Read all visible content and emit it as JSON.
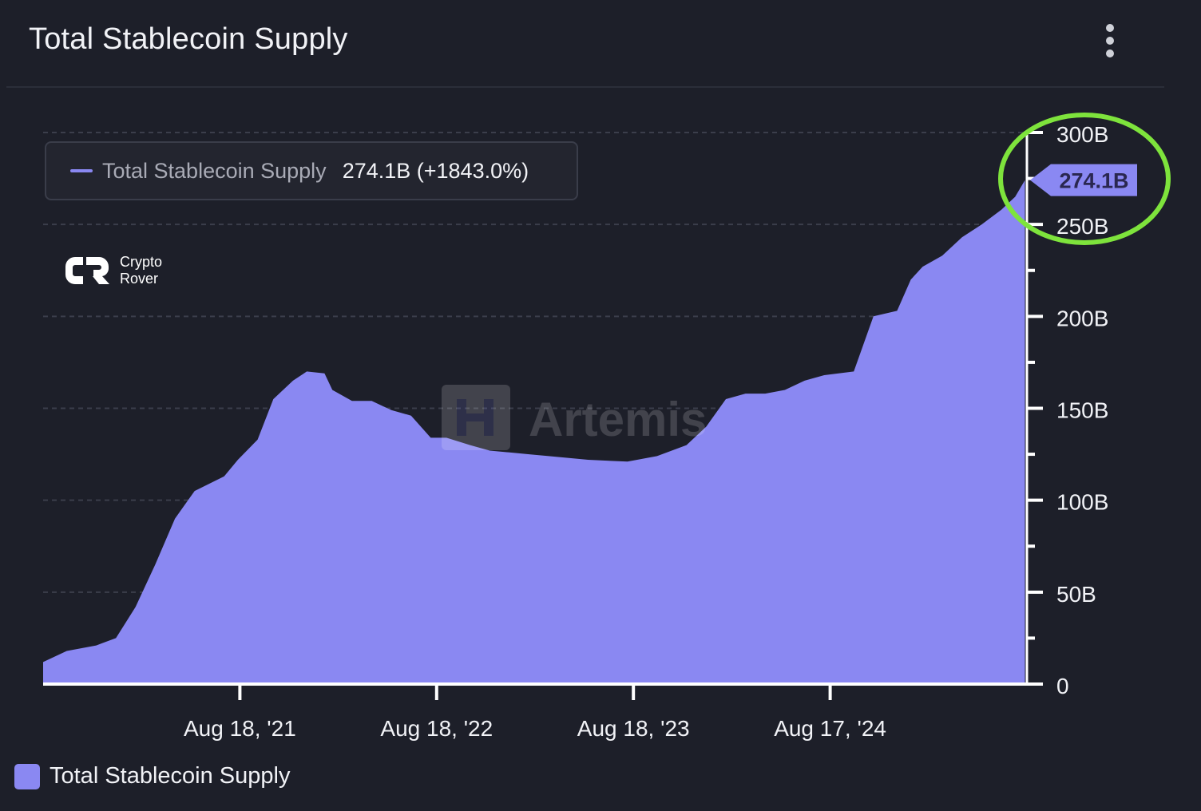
{
  "header": {
    "title": "Total Stablecoin Supply",
    "menu_icon": "more-vertical-icon"
  },
  "tooltip": {
    "series_name": "Total Stablecoin Supply",
    "value_text": "274.1B (+1843.0%)"
  },
  "watermarks": {
    "crypto_rover_line1": "Crypto",
    "crypto_rover_line2": "Rover",
    "artemis": "Artemis"
  },
  "legend": {
    "label": "Total Stablecoin Supply"
  },
  "colors": {
    "background": "#1d1f29",
    "series": "#8a88f2",
    "highlight_circle": "#7ee33c"
  },
  "chart_data": {
    "type": "area",
    "title": "Total Stablecoin Supply",
    "series_name": "Total Stablecoin Supply",
    "unit": "B",
    "x_tick_labels": [
      "Aug 18, '21",
      "Aug 18, '22",
      "Aug 18, '23",
      "Aug 17, '24"
    ],
    "x_tick_positions": [
      2021.63,
      2022.63,
      2023.63,
      2024.63
    ],
    "y_tick_labels": [
      "0",
      "50B",
      "100B",
      "150B",
      "200B",
      "250B",
      "300B"
    ],
    "y_tick_values": [
      0,
      50,
      100,
      150,
      200,
      250,
      300
    ],
    "ylim": [
      0,
      300
    ],
    "xlim": [
      2020.63,
      2025.63
    ],
    "grid": "horizontal dashed",
    "last_value_label": "274.1B",
    "x": [
      2020.63,
      2020.75,
      2020.9,
      2021.0,
      2021.1,
      2021.2,
      2021.3,
      2021.4,
      2021.55,
      2021.62,
      2021.72,
      2021.8,
      2021.9,
      2021.97,
      2022.06,
      2022.1,
      2022.2,
      2022.3,
      2022.4,
      2022.5,
      2022.6,
      2022.68,
      2022.8,
      2022.9,
      2023.0,
      2023.1,
      2023.2,
      2023.4,
      2023.6,
      2023.75,
      2023.9,
      2024.0,
      2024.1,
      2024.2,
      2024.3,
      2024.4,
      2024.5,
      2024.6,
      2024.75,
      2024.85,
      2024.97,
      2025.04,
      2025.1,
      2025.2,
      2025.3,
      2025.4,
      2025.5,
      2025.57,
      2025.62
    ],
    "values": [
      12,
      18,
      21,
      25,
      42,
      65,
      90,
      105,
      113,
      122,
      133,
      155,
      165,
      170,
      169,
      160,
      154,
      154,
      149,
      146,
      134,
      134,
      130,
      127,
      126,
      125,
      124,
      122,
      121,
      124,
      130,
      140,
      155,
      158,
      158,
      160,
      165,
      168,
      170,
      200,
      203,
      220,
      227,
      233,
      243,
      250,
      258,
      265,
      274.1
    ]
  }
}
